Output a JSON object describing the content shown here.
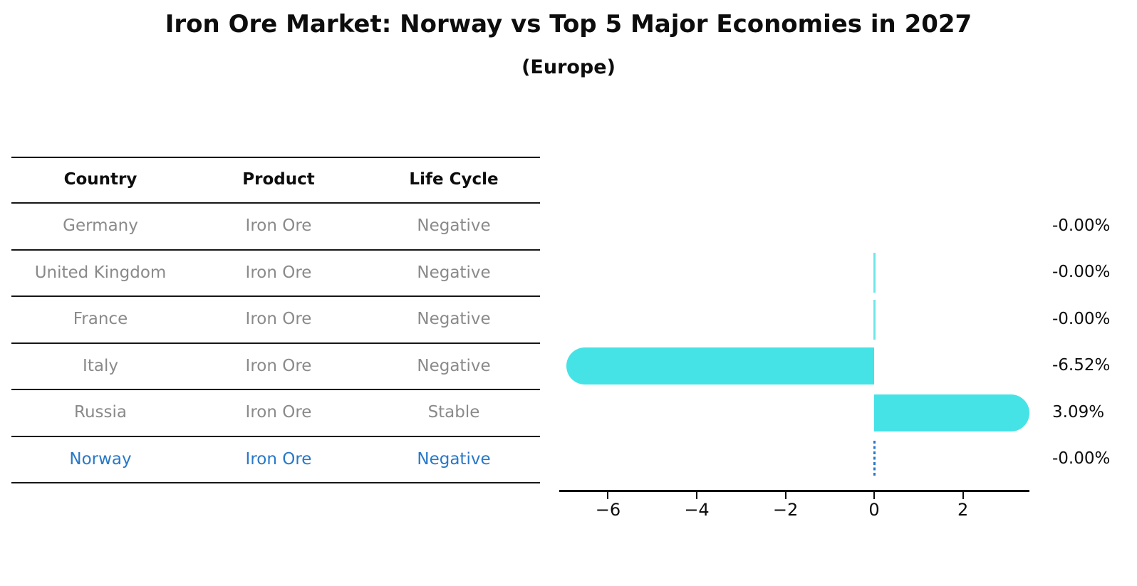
{
  "title": "Iron Ore Market: Norway vs Top 5 Major Economies in 2027",
  "subtitle": "(Europe)",
  "table": {
    "columns": [
      "Country",
      "Product",
      "Life Cycle"
    ],
    "rows": [
      {
        "cells": [
          "Germany",
          "Iron Ore",
          "Negative"
        ],
        "highlight": false
      },
      {
        "cells": [
          "United Kingdom",
          "Iron Ore",
          "Negative"
        ],
        "highlight": false
      },
      {
        "cells": [
          "France",
          "Iron Ore",
          "Negative"
        ],
        "highlight": false
      },
      {
        "cells": [
          "Italy",
          "Iron Ore",
          "Negative"
        ],
        "highlight": false
      },
      {
        "cells": [
          "Russia",
          "Iron Ore",
          "Stable"
        ],
        "highlight": false
      },
      {
        "cells": [
          "Norway",
          "Iron Ore",
          "Negative"
        ],
        "highlight": true
      }
    ]
  },
  "chart_data": {
    "type": "bar",
    "orientation": "horizontal",
    "title": "Iron Ore Market: Norway vs Top 5 Major Economies in 2027",
    "subtitle": "(Europe)",
    "categories": [
      "Germany",
      "United Kingdom",
      "France",
      "Italy",
      "Russia",
      "Norway"
    ],
    "values": [
      0.0,
      0.0,
      0.0,
      -6.52,
      3.09,
      0.0
    ],
    "value_labels": [
      "-0.00%",
      "-0.00%",
      "-0.00%",
      "-6.52%",
      "3.09%",
      "-0.00%"
    ],
    "x_ticks": [
      -6,
      -4,
      -2,
      0,
      2
    ],
    "x_tick_labels": [
      "−6",
      "−4",
      "−2",
      "0",
      "2"
    ],
    "xlim": [
      -7.1,
      3.5
    ],
    "grid": false,
    "legend": false,
    "highlight_index": 5,
    "zero_hairline_rows": [
      1,
      2
    ]
  },
  "colors": {
    "bar": "#45e2e6",
    "zero_hairline": "#6fe7e9",
    "highlight_blue": "#2878c8",
    "table_text_gray": "#8a8a8a",
    "axis_black": "#0d0d0d"
  }
}
